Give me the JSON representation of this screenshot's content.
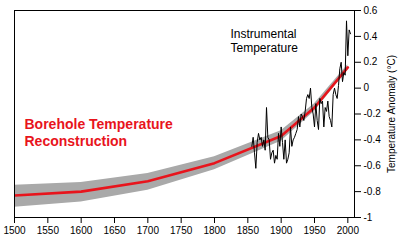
{
  "chart_data": {
    "type": "line",
    "xlim": [
      1500,
      2010
    ],
    "xticks": [
      1500,
      1550,
      1600,
      1650,
      1700,
      1750,
      1800,
      1850,
      1900,
      1950,
      2000
    ],
    "ylim": [
      -1,
      0.6
    ],
    "yticks": [
      -1,
      -0.8,
      -0.6,
      -0.4,
      -0.2,
      0,
      0.2,
      0.4,
      0.6
    ],
    "y_label": "Temperature Anomaly (°C)",
    "series": [
      {
        "name": "Borehole Temperature\nReconstruction",
        "color": "#e8141c",
        "x": [
          1500,
          1600,
          1700,
          1800,
          1900,
          1950,
          2000
        ],
        "values": [
          -0.83,
          -0.8,
          -0.72,
          -0.58,
          -0.37,
          -0.15,
          0.16
        ],
        "lower": [
          -0.92,
          -0.88,
          -0.79,
          -0.63,
          -0.41,
          -0.18,
          0.14
        ],
        "upper": [
          -0.75,
          -0.73,
          -0.66,
          -0.53,
          -0.33,
          -0.12,
          0.18
        ]
      },
      {
        "name": "Instrumental\nTemperature",
        "color": "#000000",
        "x": [
          1856,
          1858,
          1860,
          1862,
          1864,
          1866,
          1868,
          1870,
          1872,
          1874,
          1876,
          1878,
          1880,
          1882,
          1884,
          1886,
          1888,
          1890,
          1892,
          1894,
          1896,
          1898,
          1900,
          1902,
          1904,
          1906,
          1908,
          1910,
          1912,
          1914,
          1916,
          1918,
          1920,
          1922,
          1924,
          1926,
          1928,
          1930,
          1932,
          1934,
          1936,
          1938,
          1940,
          1942,
          1944,
          1946,
          1948,
          1950,
          1952,
          1954,
          1956,
          1958,
          1960,
          1962,
          1964,
          1966,
          1968,
          1970,
          1972,
          1974,
          1976,
          1978,
          1980,
          1982,
          1984,
          1986,
          1988,
          1990,
          1992,
          1994,
          1996,
          1998,
          2000,
          2002,
          2004
        ],
        "values": [
          -0.45,
          -0.38,
          -0.5,
          -0.62,
          -0.42,
          -0.35,
          -0.4,
          -0.38,
          -0.45,
          -0.4,
          -0.48,
          -0.15,
          -0.38,
          -0.4,
          -0.55,
          -0.5,
          -0.48,
          -0.58,
          -0.52,
          -0.55,
          -0.35,
          -0.45,
          -0.3,
          -0.42,
          -0.55,
          -0.4,
          -0.58,
          -0.55,
          -0.5,
          -0.3,
          -0.45,
          -0.4,
          -0.38,
          -0.35,
          -0.32,
          -0.22,
          -0.3,
          -0.2,
          -0.22,
          -0.25,
          -0.18,
          -0.08,
          -0.05,
          -0.08,
          0,
          -0.15,
          -0.2,
          -0.3,
          -0.12,
          -0.25,
          -0.32,
          -0.08,
          -0.12,
          -0.1,
          -0.3,
          -0.15,
          -0.18,
          -0.1,
          -0.22,
          -0.25,
          -0.3,
          -0.05,
          0,
          -0.05,
          -0.08,
          0.02,
          0.15,
          0.2,
          0.05,
          0.12,
          0.1,
          0.52,
          0.25,
          0.45,
          0.42
        ]
      }
    ]
  }
}
